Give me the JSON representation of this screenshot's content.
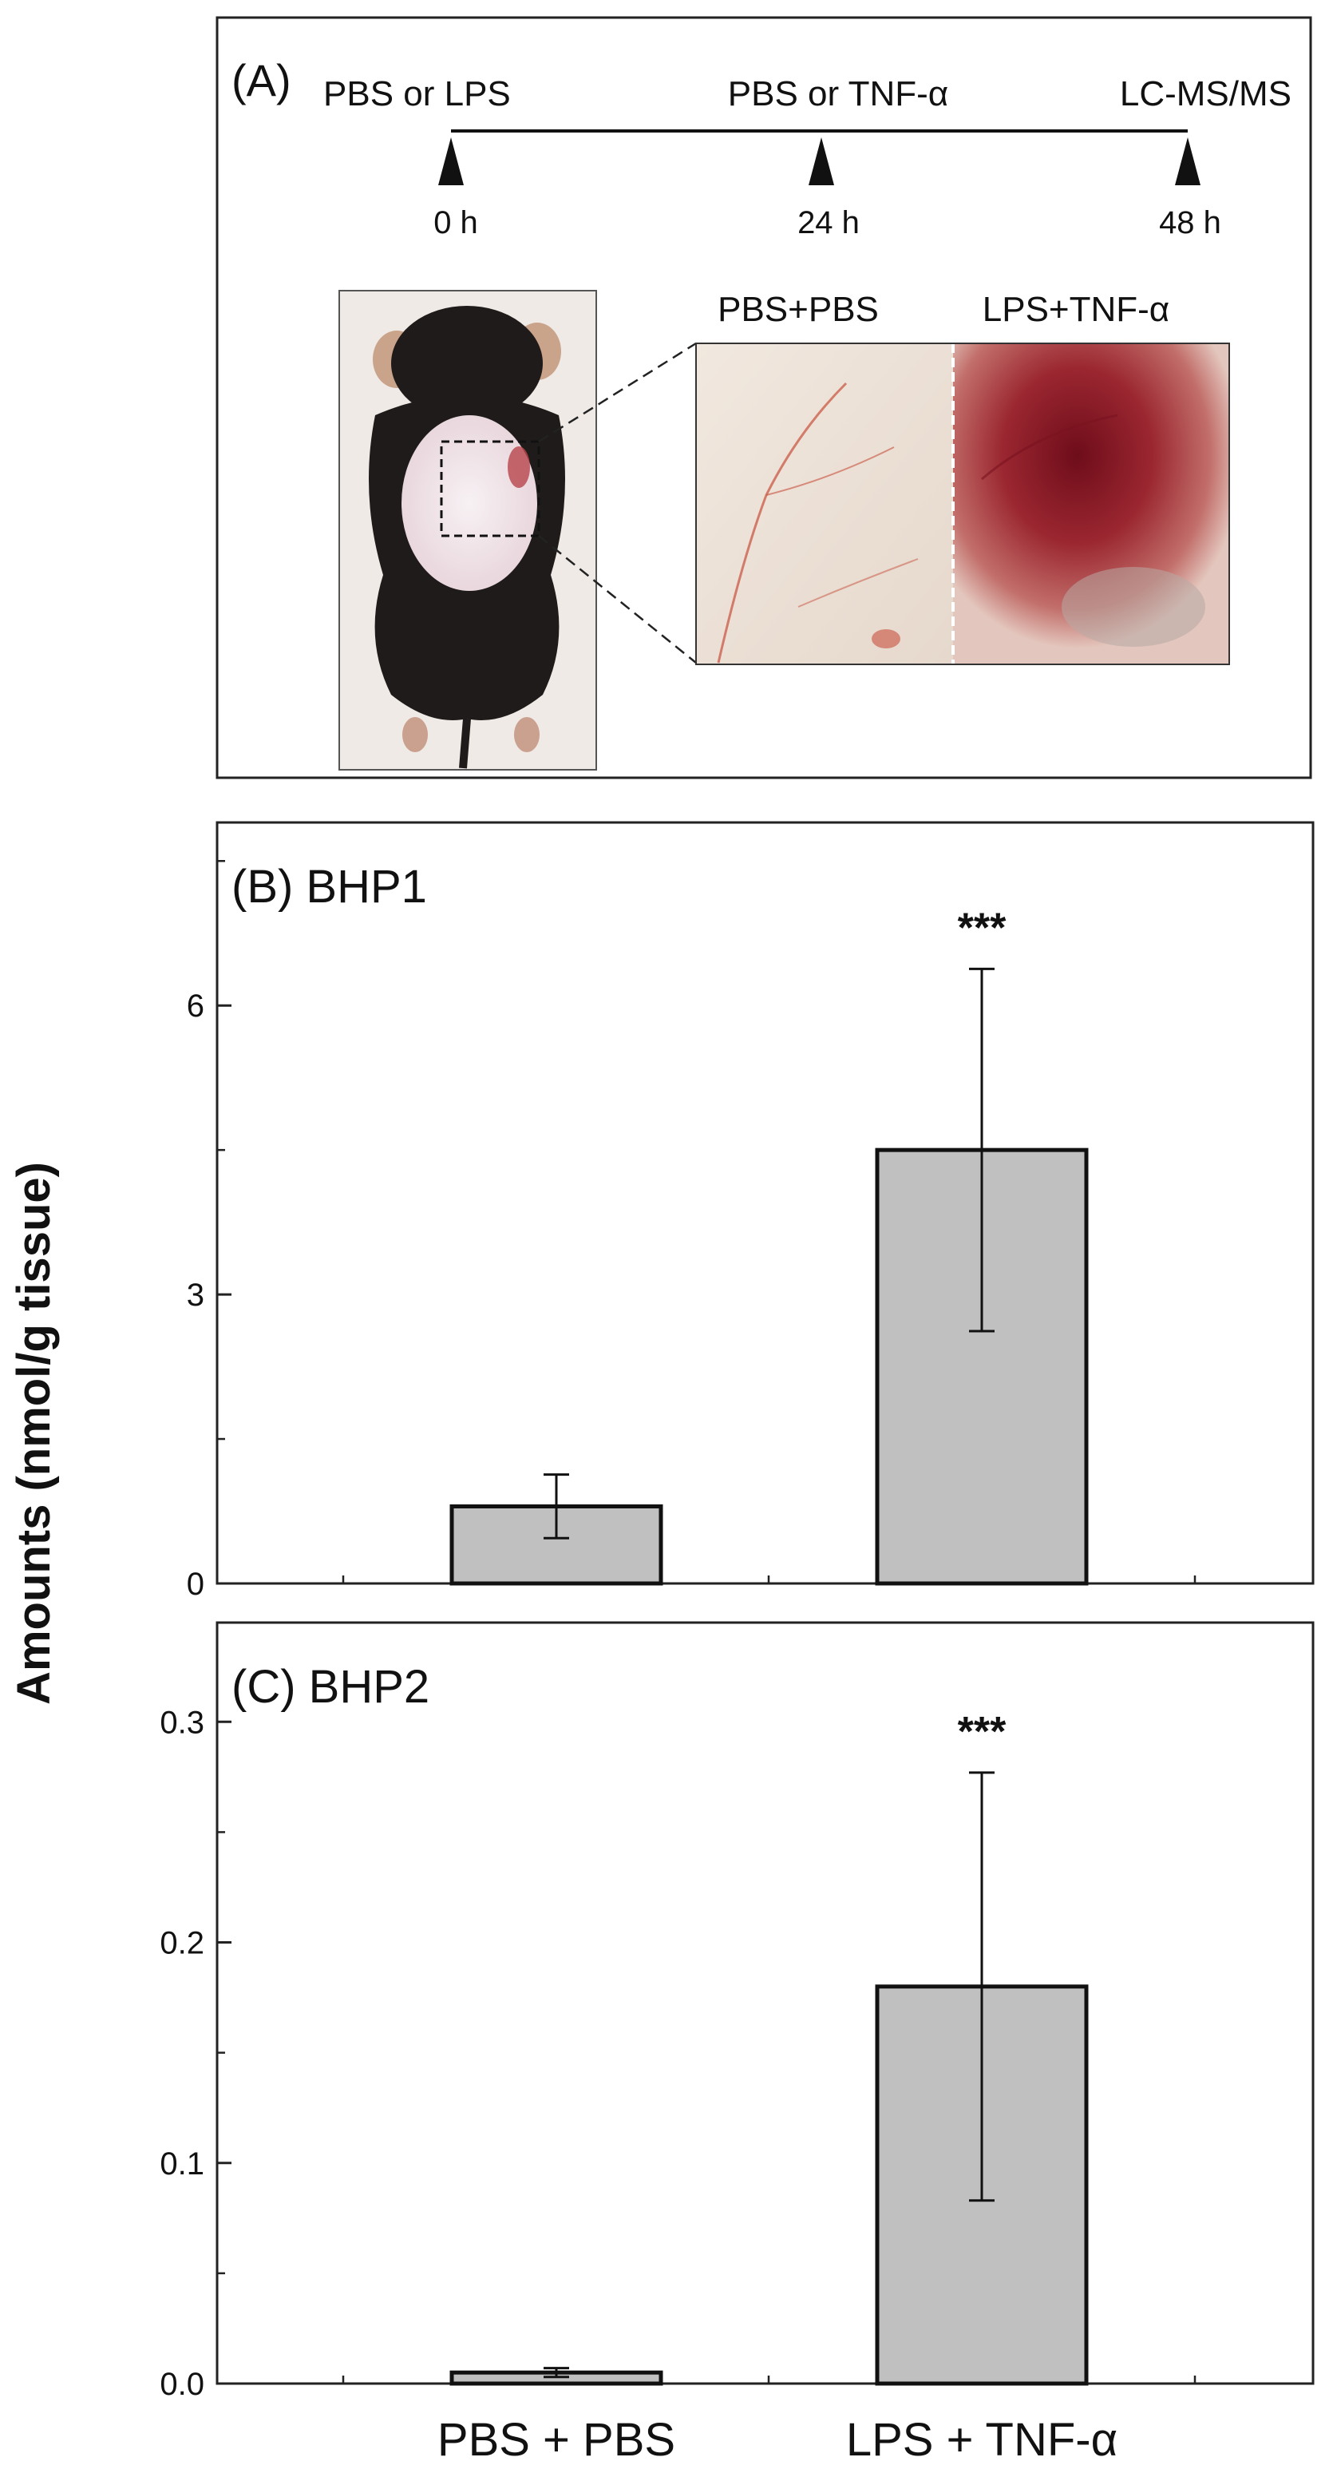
{
  "panel_a": {
    "label": "(A)",
    "timeline": [
      {
        "event": "PBS or LPS",
        "time": "0 h"
      },
      {
        "event": "PBS or TNF-α",
        "time": "24 h"
      },
      {
        "event": "LC-MS/MS",
        "time": "48 h"
      }
    ],
    "photo_labels": {
      "left": "PBS+PBS",
      "right": "LPS+TNF-α"
    },
    "photo_colors": {
      "skin": "#efe6dd",
      "fur": "#1e1b1a",
      "inflamed": "#8a1d25",
      "vessel": "#c8503c"
    }
  },
  "y_axis_label": "Amounts (nmol/g tissue)",
  "chart_data": [
    {
      "type": "bar",
      "title": "(B) BHP1",
      "categories": [
        "PBS + PBS",
        "LPS + TNF-α"
      ],
      "values": [
        0.8,
        4.5
      ],
      "error": [
        0.33,
        1.88
      ],
      "significance": [
        "",
        "***"
      ],
      "ylim": [
        0,
        7.9
      ],
      "yticks": [
        0,
        3,
        6
      ],
      "ytick_labels": [
        "0",
        "3",
        "6"
      ],
      "ylabel": "Amounts (nmol/g tissue)",
      "bar_color": "#c0c0c0",
      "show_xtick_labels": false
    },
    {
      "type": "bar",
      "title": "(C) BHP2",
      "categories": [
        "PBS + PBS",
        "LPS + TNF-α"
      ],
      "values": [
        0.005,
        0.18
      ],
      "error": [
        0.002,
        0.097
      ],
      "significance": [
        "",
        "***"
      ],
      "ylim": [
        0,
        0.345
      ],
      "yticks": [
        0.0,
        0.1,
        0.2,
        0.3
      ],
      "ytick_labels": [
        "0.0",
        "0.1",
        "0.2",
        "0.3"
      ],
      "ylabel": "Amounts (nmol/g tissue)",
      "bar_color": "#c0c0c0",
      "show_xtick_labels": true
    }
  ]
}
